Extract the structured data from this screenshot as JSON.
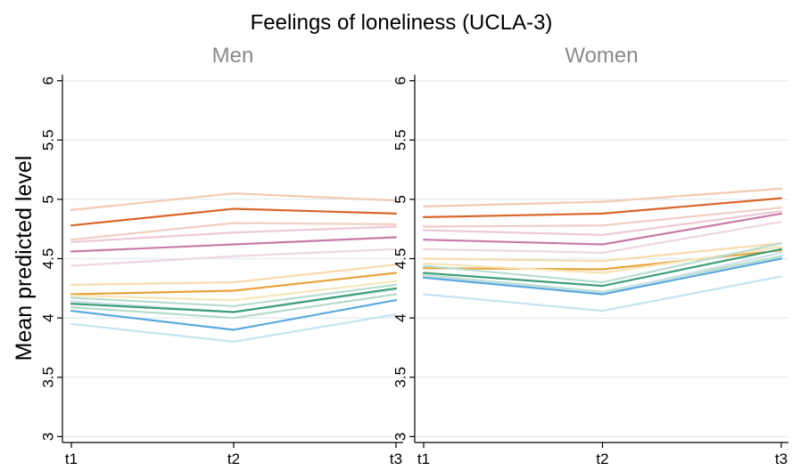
{
  "chart_data": {
    "type": "line",
    "title": "Feelings of loneliness (UCLA-3)",
    "ylabel": "Mean predicted level",
    "xlabel": "",
    "ylim": [
      2.95,
      6.05
    ],
    "yticks": [
      3,
      3.5,
      4,
      4.5,
      5,
      5.5,
      6
    ],
    "ytick_labels": [
      "3",
      "3.5",
      "4",
      "4.5",
      "5",
      "5.5",
      "6"
    ],
    "categories": [
      "t1",
      "t2",
      "t3"
    ],
    "grid": true,
    "legend": "none",
    "panels": [
      {
        "title": "Men",
        "series": [
          {
            "color": "#f2c9b3",
            "values": [
              4.91,
              5.05,
              4.99
            ]
          },
          {
            "color": "#d9662b",
            "values": [
              4.78,
              4.92,
              4.88
            ]
          },
          {
            "color": "#f0cfc0",
            "values": [
              4.66,
              4.8,
              4.79
            ]
          },
          {
            "color": "#ecc9d5",
            "values": [
              4.64,
              4.72,
              4.77
            ]
          },
          {
            "color": "#c77ba8",
            "values": [
              4.56,
              4.62,
              4.68
            ]
          },
          {
            "color": "#eed6e4",
            "values": [
              4.44,
              4.52,
              4.58
            ]
          },
          {
            "color": "#f7dcab",
            "values": [
              4.28,
              4.3,
              4.45
            ]
          },
          {
            "color": "#e8a33a",
            "values": [
              4.2,
              4.23,
              4.38
            ]
          },
          {
            "color": "#f5e6b8",
            "values": [
              4.19,
              4.15,
              4.31
            ]
          },
          {
            "color": "#b8ddd0",
            "values": [
              4.17,
              4.1,
              4.28
            ]
          },
          {
            "color": "#cde2ea",
            "values": [
              4.14,
              4.05,
              4.24
            ]
          },
          {
            "color": "#3f9f7a",
            "values": [
              4.12,
              4.05,
              4.25
            ]
          },
          {
            "color": "#b5dcc8",
            "values": [
              4.09,
              4.0,
              4.2
            ]
          },
          {
            "color": "#5aaadf",
            "values": [
              4.06,
              3.9,
              4.15
            ]
          },
          {
            "color": "#c6e2f2",
            "values": [
              3.95,
              3.8,
              4.03
            ]
          }
        ]
      },
      {
        "title": "Women",
        "series": [
          {
            "color": "#f2c9b3",
            "values": [
              4.94,
              4.98,
              5.09
            ]
          },
          {
            "color": "#d9662b",
            "values": [
              4.85,
              4.88,
              5.01
            ]
          },
          {
            "color": "#f0cfc0",
            "values": [
              4.77,
              4.78,
              4.93
            ]
          },
          {
            "color": "#ecc9d5",
            "values": [
              4.74,
              4.7,
              4.9
            ]
          },
          {
            "color": "#c77ba8",
            "values": [
              4.66,
              4.62,
              4.88
            ]
          },
          {
            "color": "#eed6e4",
            "values": [
              4.58,
              4.55,
              4.81
            ]
          },
          {
            "color": "#f7dcab",
            "values": [
              4.5,
              4.48,
              4.63
            ]
          },
          {
            "color": "#e8a33a",
            "values": [
              4.42,
              4.41,
              4.57
            ]
          },
          {
            "color": "#f5e6b8",
            "values": [
              4.46,
              4.38,
              4.6
            ]
          },
          {
            "color": "#b8ddd0",
            "values": [
              4.44,
              4.3,
              4.63
            ]
          },
          {
            "color": "#3f9f7a",
            "values": [
              4.38,
              4.27,
              4.58
            ]
          },
          {
            "color": "#b5dcc8",
            "values": [
              4.36,
              4.22,
              4.52
            ]
          },
          {
            "color": "#cde2ea",
            "values": [
              4.35,
              4.21,
              4.55
            ]
          },
          {
            "color": "#5aaadf",
            "values": [
              4.34,
              4.2,
              4.5
            ]
          },
          {
            "color": "#c6e2f2",
            "values": [
              4.2,
              4.06,
              4.35
            ]
          }
        ]
      }
    ]
  }
}
